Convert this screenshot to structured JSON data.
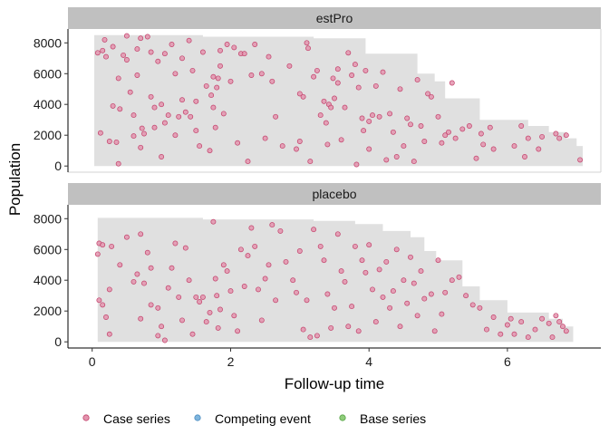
{
  "chart_data": {
    "type": "scatter",
    "xlabel": "Follow-up time",
    "ylabel": "Population",
    "xlim": [
      -0.35,
      7.35
    ],
    "x_ticks": [
      0,
      2,
      4,
      6
    ],
    "y_ticks": [
      0,
      2000,
      4000,
      6000,
      8000
    ],
    "legend": {
      "placement": "bottom",
      "entries": [
        {
          "name": "Case series",
          "color": "#CC6688"
        },
        {
          "name": "Competing event",
          "color": "#5599CC"
        },
        {
          "name": "Base series",
          "color": "#66BB55"
        }
      ]
    },
    "colors": {
      "case_point_fill": "#E394AE",
      "case_point_stroke": "#C2406A",
      "ribbon": "#E0E0E0",
      "strip": "#C0C0C0"
    },
    "panels": [
      {
        "name": "estPro",
        "ylim": [
          -400,
          8900
        ],
        "base_steps": [
          [
            0.03,
            8500
          ],
          [
            1.6,
            8400
          ],
          [
            3.2,
            8300
          ],
          [
            3.95,
            7300
          ],
          [
            4.7,
            6000
          ],
          [
            4.95,
            5500
          ],
          [
            5.1,
            4400
          ],
          [
            5.6,
            3000
          ],
          [
            6.3,
            2600
          ],
          [
            6.6,
            2200
          ],
          [
            6.85,
            1800
          ],
          [
            7.0,
            1300
          ],
          [
            7.09,
            1300
          ]
        ],
        "case_points": [
          [
            0.08,
            7350
          ],
          [
            0.12,
            2150
          ],
          [
            0.15,
            7500
          ],
          [
            0.18,
            8200
          ],
          [
            0.2,
            7100
          ],
          [
            0.25,
            1600
          ],
          [
            0.3,
            3900
          ],
          [
            0.3,
            7750
          ],
          [
            0.35,
            1550
          ],
          [
            0.38,
            5700
          ],
          [
            0.38,
            150
          ],
          [
            0.4,
            3700
          ],
          [
            0.45,
            7200
          ],
          [
            0.5,
            8450
          ],
          [
            0.5,
            6900
          ],
          [
            0.55,
            4800
          ],
          [
            0.6,
            1950
          ],
          [
            0.6,
            3300
          ],
          [
            0.65,
            5900
          ],
          [
            0.65,
            7600
          ],
          [
            0.7,
            8300
          ],
          [
            0.7,
            1200
          ],
          [
            0.72,
            2450
          ],
          [
            0.75,
            2100
          ],
          [
            0.8,
            8400
          ],
          [
            0.85,
            4500
          ],
          [
            0.85,
            7400
          ],
          [
            0.9,
            2500
          ],
          [
            0.9,
            3800
          ],
          [
            0.95,
            6800
          ],
          [
            1.0,
            4000
          ],
          [
            1.0,
            600
          ],
          [
            1.05,
            2800
          ],
          [
            1.05,
            7300
          ],
          [
            1.1,
            3300
          ],
          [
            1.15,
            7900
          ],
          [
            1.2,
            6000
          ],
          [
            1.2,
            2000
          ],
          [
            1.25,
            3200
          ],
          [
            1.3,
            4300
          ],
          [
            1.3,
            7000
          ],
          [
            1.35,
            3500
          ],
          [
            1.4,
            8150
          ],
          [
            1.42,
            3200
          ],
          [
            1.45,
            6200
          ],
          [
            1.5,
            4200
          ],
          [
            1.5,
            2300
          ],
          [
            1.55,
            1300
          ],
          [
            1.6,
            7400
          ],
          [
            1.65,
            5200
          ],
          [
            1.7,
            1000
          ],
          [
            1.72,
            4600
          ],
          [
            1.75,
            5800
          ],
          [
            1.75,
            3800
          ],
          [
            1.78,
            2500
          ],
          [
            1.8,
            5100
          ],
          [
            1.82,
            5700
          ],
          [
            1.85,
            7500
          ],
          [
            1.85,
            6500
          ],
          [
            1.9,
            3400
          ],
          [
            1.95,
            7900
          ],
          [
            2.0,
            5500
          ],
          [
            2.05,
            7700
          ],
          [
            2.1,
            1500
          ],
          [
            2.15,
            7300
          ],
          [
            2.2,
            7300
          ],
          [
            2.25,
            300
          ],
          [
            2.3,
            5900
          ],
          [
            2.35,
            7900
          ],
          [
            2.45,
            6000
          ],
          [
            2.5,
            1800
          ],
          [
            2.55,
            7100
          ],
          [
            2.6,
            5500
          ],
          [
            2.65,
            3200
          ],
          [
            2.75,
            1300
          ],
          [
            2.85,
            6500
          ],
          [
            2.95,
            1100
          ],
          [
            3.0,
            1600
          ],
          [
            3.0,
            4700
          ],
          [
            3.05,
            4500
          ],
          [
            3.1,
            8000
          ],
          [
            3.12,
            7650
          ],
          [
            3.15,
            300
          ],
          [
            3.2,
            5800
          ],
          [
            3.25,
            6200
          ],
          [
            3.3,
            3300
          ],
          [
            3.35,
            4200
          ],
          [
            3.38,
            2800
          ],
          [
            3.4,
            1400
          ],
          [
            3.42,
            4000
          ],
          [
            3.45,
            3800
          ],
          [
            3.48,
            5700
          ],
          [
            3.5,
            4400
          ],
          [
            3.55,
            5400
          ],
          [
            3.55,
            6300
          ],
          [
            3.6,
            1700
          ],
          [
            3.65,
            3800
          ],
          [
            3.7,
            7350
          ],
          [
            3.75,
            5900
          ],
          [
            3.8,
            6600
          ],
          [
            3.82,
            100
          ],
          [
            3.85,
            5100
          ],
          [
            3.9,
            3100
          ],
          [
            3.92,
            2300
          ],
          [
            3.95,
            6200
          ],
          [
            4.0,
            1100
          ],
          [
            4.0,
            2900
          ],
          [
            4.05,
            3300
          ],
          [
            4.1,
            5200
          ],
          [
            4.15,
            3200
          ],
          [
            4.2,
            6100
          ],
          [
            4.25,
            400
          ],
          [
            4.3,
            3400
          ],
          [
            4.35,
            2200
          ],
          [
            4.4,
            600
          ],
          [
            4.45,
            5000
          ],
          [
            4.5,
            1300
          ],
          [
            4.55,
            3100
          ],
          [
            4.6,
            2700
          ],
          [
            4.65,
            300
          ],
          [
            4.7,
            5600
          ],
          [
            4.75,
            2600
          ],
          [
            4.8,
            1600
          ],
          [
            4.85,
            4700
          ],
          [
            4.9,
            4500
          ],
          [
            5.0,
            3200
          ],
          [
            5.05,
            1500
          ],
          [
            5.1,
            2000
          ],
          [
            5.15,
            2200
          ],
          [
            5.2,
            5400
          ],
          [
            5.25,
            1800
          ],
          [
            5.35,
            2400
          ],
          [
            5.45,
            2600
          ],
          [
            5.55,
            500
          ],
          [
            5.62,
            2100
          ],
          [
            5.65,
            1400
          ],
          [
            5.75,
            2500
          ],
          [
            5.8,
            1100
          ],
          [
            6.1,
            1300
          ],
          [
            6.2,
            2600
          ],
          [
            6.25,
            600
          ],
          [
            6.3,
            1800
          ],
          [
            6.45,
            1100
          ],
          [
            6.5,
            1900
          ],
          [
            6.7,
            2100
          ],
          [
            6.75,
            1800
          ],
          [
            6.85,
            2000
          ],
          [
            7.05,
            400
          ]
        ]
      },
      {
        "name": "placebo",
        "ylim": [
          -400,
          8900
        ],
        "base_steps": [
          [
            0.08,
            8050
          ],
          [
            1.6,
            7950
          ],
          [
            3.2,
            7850
          ],
          [
            3.8,
            7650
          ],
          [
            4.2,
            7200
          ],
          [
            4.6,
            6800
          ],
          [
            4.8,
            5900
          ],
          [
            4.97,
            5300
          ],
          [
            5.35,
            3600
          ],
          [
            5.6,
            2700
          ],
          [
            6.0,
            1900
          ],
          [
            6.6,
            1500
          ],
          [
            6.8,
            1000
          ],
          [
            6.95,
            1000
          ]
        ],
        "case_points": [
          [
            0.08,
            5700
          ],
          [
            0.1,
            6400
          ],
          [
            0.15,
            6300
          ],
          [
            0.1,
            2700
          ],
          [
            0.15,
            2400
          ],
          [
            0.2,
            1600
          ],
          [
            0.25,
            500
          ],
          [
            0.25,
            3400
          ],
          [
            0.28,
            6200
          ],
          [
            0.4,
            5000
          ],
          [
            0.5,
            6800
          ],
          [
            0.6,
            3900
          ],
          [
            0.65,
            4400
          ],
          [
            0.7,
            1500
          ],
          [
            0.7,
            7000
          ],
          [
            0.75,
            3800
          ],
          [
            0.8,
            5800
          ],
          [
            0.85,
            4800
          ],
          [
            0.85,
            2400
          ],
          [
            0.95,
            2200
          ],
          [
            0.95,
            400
          ],
          [
            1.0,
            1000
          ],
          [
            1.05,
            100
          ],
          [
            1.1,
            3500
          ],
          [
            1.15,
            4800
          ],
          [
            1.2,
            6400
          ],
          [
            1.25,
            2900
          ],
          [
            1.3,
            1400
          ],
          [
            1.35,
            6100
          ],
          [
            1.4,
            4000
          ],
          [
            1.45,
            500
          ],
          [
            1.5,
            2900
          ],
          [
            1.55,
            2600
          ],
          [
            1.6,
            2900
          ],
          [
            1.65,
            1300
          ],
          [
            1.7,
            1900
          ],
          [
            1.75,
            7800
          ],
          [
            1.78,
            4100
          ],
          [
            1.8,
            3000
          ],
          [
            1.82,
            900
          ],
          [
            1.85,
            2100
          ],
          [
            1.9,
            5000
          ],
          [
            1.95,
            4600
          ],
          [
            2.0,
            3300
          ],
          [
            2.05,
            1700
          ],
          [
            2.1,
            700
          ],
          [
            2.15,
            6000
          ],
          [
            2.2,
            3600
          ],
          [
            2.25,
            5600
          ],
          [
            2.3,
            7400
          ],
          [
            2.35,
            6200
          ],
          [
            2.4,
            3400
          ],
          [
            2.45,
            1400
          ],
          [
            2.5,
            4100
          ],
          [
            2.55,
            5000
          ],
          [
            2.6,
            7600
          ],
          [
            2.65,
            2700
          ],
          [
            2.72,
            7200
          ],
          [
            2.8,
            5200
          ],
          [
            2.9,
            4000
          ],
          [
            2.95,
            3200
          ],
          [
            3.0,
            5900
          ],
          [
            3.05,
            800
          ],
          [
            3.1,
            2700
          ],
          [
            3.15,
            300
          ],
          [
            3.2,
            7300
          ],
          [
            3.25,
            400
          ],
          [
            3.3,
            6200
          ],
          [
            3.35,
            5300
          ],
          [
            3.4,
            3100
          ],
          [
            3.45,
            900
          ],
          [
            3.5,
            2200
          ],
          [
            3.55,
            7000
          ],
          [
            3.6,
            4600
          ],
          [
            3.65,
            3900
          ],
          [
            3.7,
            1000
          ],
          [
            3.75,
            2300
          ],
          [
            3.8,
            6200
          ],
          [
            3.85,
            700
          ],
          [
            3.9,
            5300
          ],
          [
            3.95,
            4500
          ],
          [
            4.0,
            6300
          ],
          [
            4.05,
            3400
          ],
          [
            4.1,
            1300
          ],
          [
            4.15,
            4700
          ],
          [
            4.2,
            2900
          ],
          [
            4.25,
            5200
          ],
          [
            4.3,
            2200
          ],
          [
            4.35,
            3300
          ],
          [
            4.4,
            6000
          ],
          [
            4.45,
            1000
          ],
          [
            4.5,
            4000
          ],
          [
            4.55,
            2500
          ],
          [
            4.6,
            5500
          ],
          [
            4.65,
            3800
          ],
          [
            4.7,
            1700
          ],
          [
            4.75,
            4600
          ],
          [
            4.8,
            2800
          ],
          [
            4.9,
            3100
          ],
          [
            4.95,
            700
          ],
          [
            5.0,
            5300
          ],
          [
            5.05,
            1800
          ],
          [
            5.1,
            3200
          ],
          [
            5.2,
            4000
          ],
          [
            5.3,
            4200
          ],
          [
            5.4,
            3000
          ],
          [
            5.5,
            2400
          ],
          [
            5.6,
            2200
          ],
          [
            5.7,
            800
          ],
          [
            5.8,
            1600
          ],
          [
            5.9,
            500
          ],
          [
            6.0,
            1100
          ],
          [
            6.05,
            1500
          ],
          [
            6.1,
            500
          ],
          [
            6.2,
            1300
          ],
          [
            6.3,
            300
          ],
          [
            6.4,
            800
          ],
          [
            6.5,
            1500
          ],
          [
            6.6,
            1200
          ],
          [
            6.65,
            300
          ],
          [
            6.7,
            1700
          ],
          [
            6.75,
            1300
          ],
          [
            6.8,
            1000
          ],
          [
            6.85,
            700
          ]
        ]
      }
    ]
  }
}
